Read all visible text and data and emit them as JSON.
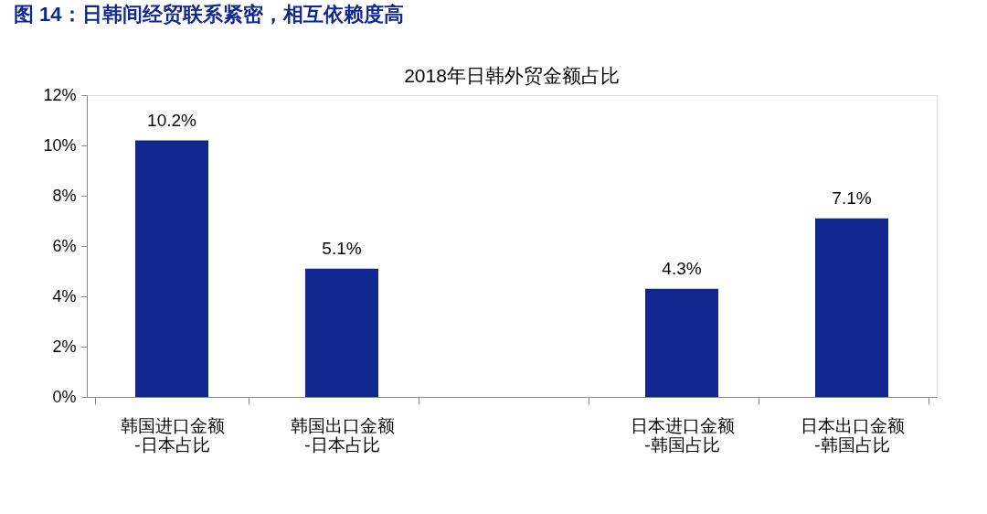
{
  "chart_data": {
    "type": "bar",
    "title": "图 14：日韩间经贸联系紧密，相互依赖度高",
    "subtitle": "2018年日韩外贸金额占比",
    "categories": [
      "韩国进口金额\n-日本占比",
      "韩国出口金额\n-日本占比",
      null,
      "日本进口金额\n-韩国占比",
      "日本出口金额\n-韩国占比"
    ],
    "values": [
      10.2,
      5.1,
      null,
      4.3,
      7.1
    ],
    "color": "#10288e",
    "value_labels": [
      "10.2%",
      "5.1%",
      null,
      "4.3%",
      "7.1%"
    ],
    "ylim": [
      0,
      12
    ],
    "yticks": [
      {
        "value": 0,
        "label": "0%"
      },
      {
        "value": 2,
        "label": "2%"
      },
      {
        "value": 4,
        "label": "4%"
      },
      {
        "value": 6,
        "label": "6%"
      },
      {
        "value": 8,
        "label": "8%"
      },
      {
        "value": 10,
        "label": "10%"
      },
      {
        "value": 12,
        "label": "12%"
      }
    ],
    "grid": false
  }
}
